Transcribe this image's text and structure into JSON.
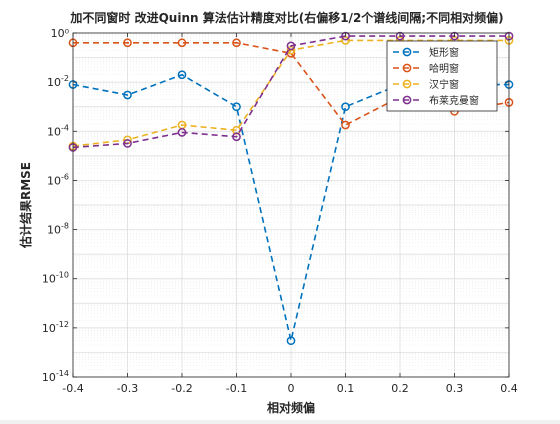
{
  "chart_data": {
    "type": "line",
    "title": "加不同窗时 改进Quinn 算法估计精度对比(右偏移1/2个谱线间隔;不同相对频偏)",
    "xlabel": "相对频偏",
    "ylabel": "估计结果RMSE",
    "xlim": [
      -0.4,
      0.4
    ],
    "ylim": [
      1e-14,
      1
    ],
    "yscale": "log",
    "grid": true,
    "minor_grid": true,
    "legend_position": "top-right",
    "x": [
      -0.4,
      -0.3,
      -0.2,
      -0.1,
      0.0,
      0.1,
      0.2,
      0.3,
      0.4
    ],
    "x_tick_labels": [
      "-0.4",
      "-0.3",
      "-0.2",
      "-0.1",
      "0",
      "0.1",
      "0.2",
      "0.3",
      "0.4"
    ],
    "y_tick_labels": [
      {
        "base": "10",
        "exp": "-14",
        "value": 1e-14
      },
      {
        "base": "10",
        "exp": "-12",
        "value": 1e-12
      },
      {
        "base": "10",
        "exp": "-10",
        "value": 1e-10
      },
      {
        "base": "10",
        "exp": "-8",
        "value": 1e-08
      },
      {
        "base": "10",
        "exp": "-6",
        "value": 1e-06
      },
      {
        "base": "10",
        "exp": "-4",
        "value": 0.0001
      },
      {
        "base": "10",
        "exp": "-2",
        "value": 0.01
      },
      {
        "base": "",
        "exp": "",
        "value": 1,
        "label": "10⁰"
      }
    ],
    "series": [
      {
        "name": "矩形窗",
        "color": "#0072bd",
        "values": [
          0.008,
          0.003,
          0.02,
          0.001,
          3e-13,
          0.001,
          0.008,
          0.008,
          0.008
        ]
      },
      {
        "name": "哈明窗",
        "color": "#d95319",
        "values": [
          0.4,
          0.4,
          0.4,
          0.4,
          0.15,
          0.00018,
          0.0025,
          0.00065,
          0.0015
        ]
      },
      {
        "name": "汉宁窗",
        "color": "#edb120",
        "values": [
          2.5e-05,
          4.5e-05,
          0.00018,
          0.00011,
          0.2,
          0.5,
          0.5,
          0.5,
          0.5
        ]
      },
      {
        "name": "布莱克曼窗",
        "color": "#7e2f8e",
        "values": [
          2.2e-05,
          3.2e-05,
          9e-05,
          6e-05,
          0.3,
          0.75,
          0.75,
          0.75,
          0.75
        ]
      }
    ]
  }
}
